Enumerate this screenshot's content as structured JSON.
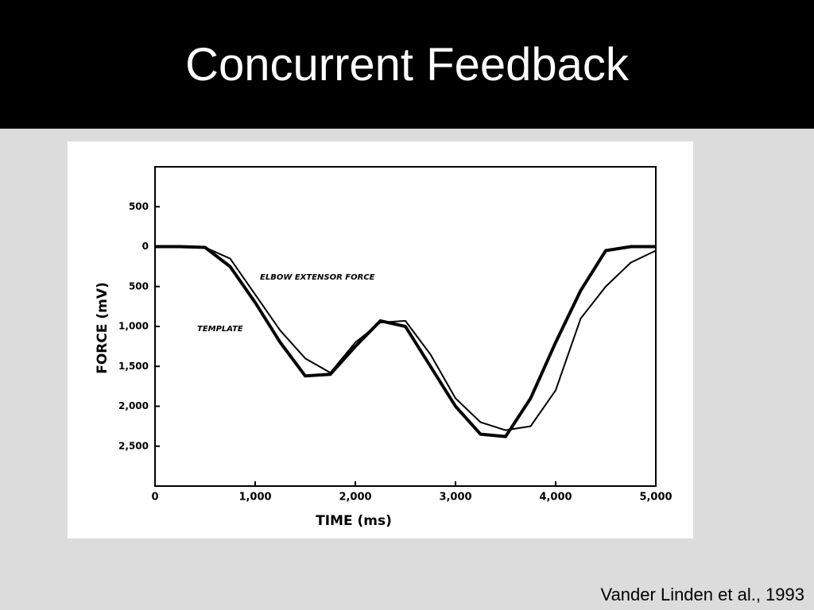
{
  "slide_title": "Concurrent Feedback",
  "citation": "Vander Linden et al., 1993",
  "chart_data": {
    "type": "line",
    "x_label": "TIME (ms)",
    "y_label": "FORCE (mV)",
    "x": [
      0,
      250,
      500,
      750,
      1000,
      1250,
      1500,
      1750,
      2000,
      2250,
      2500,
      2750,
      3000,
      3250,
      3500,
      3750,
      4000,
      4250,
      4500,
      4750,
      5000
    ],
    "series": [
      {
        "name": "TEMPLATE",
        "color": "#000000",
        "width": 4,
        "values": [
          0,
          0,
          -10,
          -250,
          -700,
          -1200,
          -1620,
          -1600,
          -1250,
          -930,
          -1000,
          -1500,
          -2000,
          -2350,
          -2380,
          -1900,
          -1200,
          -550,
          -50,
          0,
          0
        ]
      },
      {
        "name": "ELBOW EXTENSOR FORCE",
        "color": "#000000",
        "width": 2,
        "values": [
          0,
          0,
          -10,
          -150,
          -600,
          -1050,
          -1400,
          -1580,
          -1200,
          -950,
          -930,
          -1350,
          -1900,
          -2200,
          -2300,
          -2250,
          -1800,
          -900,
          -500,
          -200,
          -50
        ]
      }
    ],
    "xlim": [
      0,
      5000
    ],
    "xticks": [
      0,
      {
        "value": 1000,
        "label": "1,000"
      },
      {
        "value": 2000,
        "label": "2,000"
      },
      {
        "value": 3000,
        "label": "3,000"
      },
      {
        "value": 4000,
        "label": "4,000"
      },
      {
        "value": 5000,
        "label": "5,000"
      }
    ],
    "ylim": [
      -3000,
      1000
    ],
    "yticks": [
      500,
      0,
      {
        "value": -500,
        "label": "500"
      },
      {
        "value": -1000,
        "label": "1,000"
      },
      {
        "value": -1500,
        "label": "1,500"
      },
      {
        "value": -2000,
        "label": "2,000"
      },
      {
        "value": -2500,
        "label": "2,500"
      }
    ]
  }
}
